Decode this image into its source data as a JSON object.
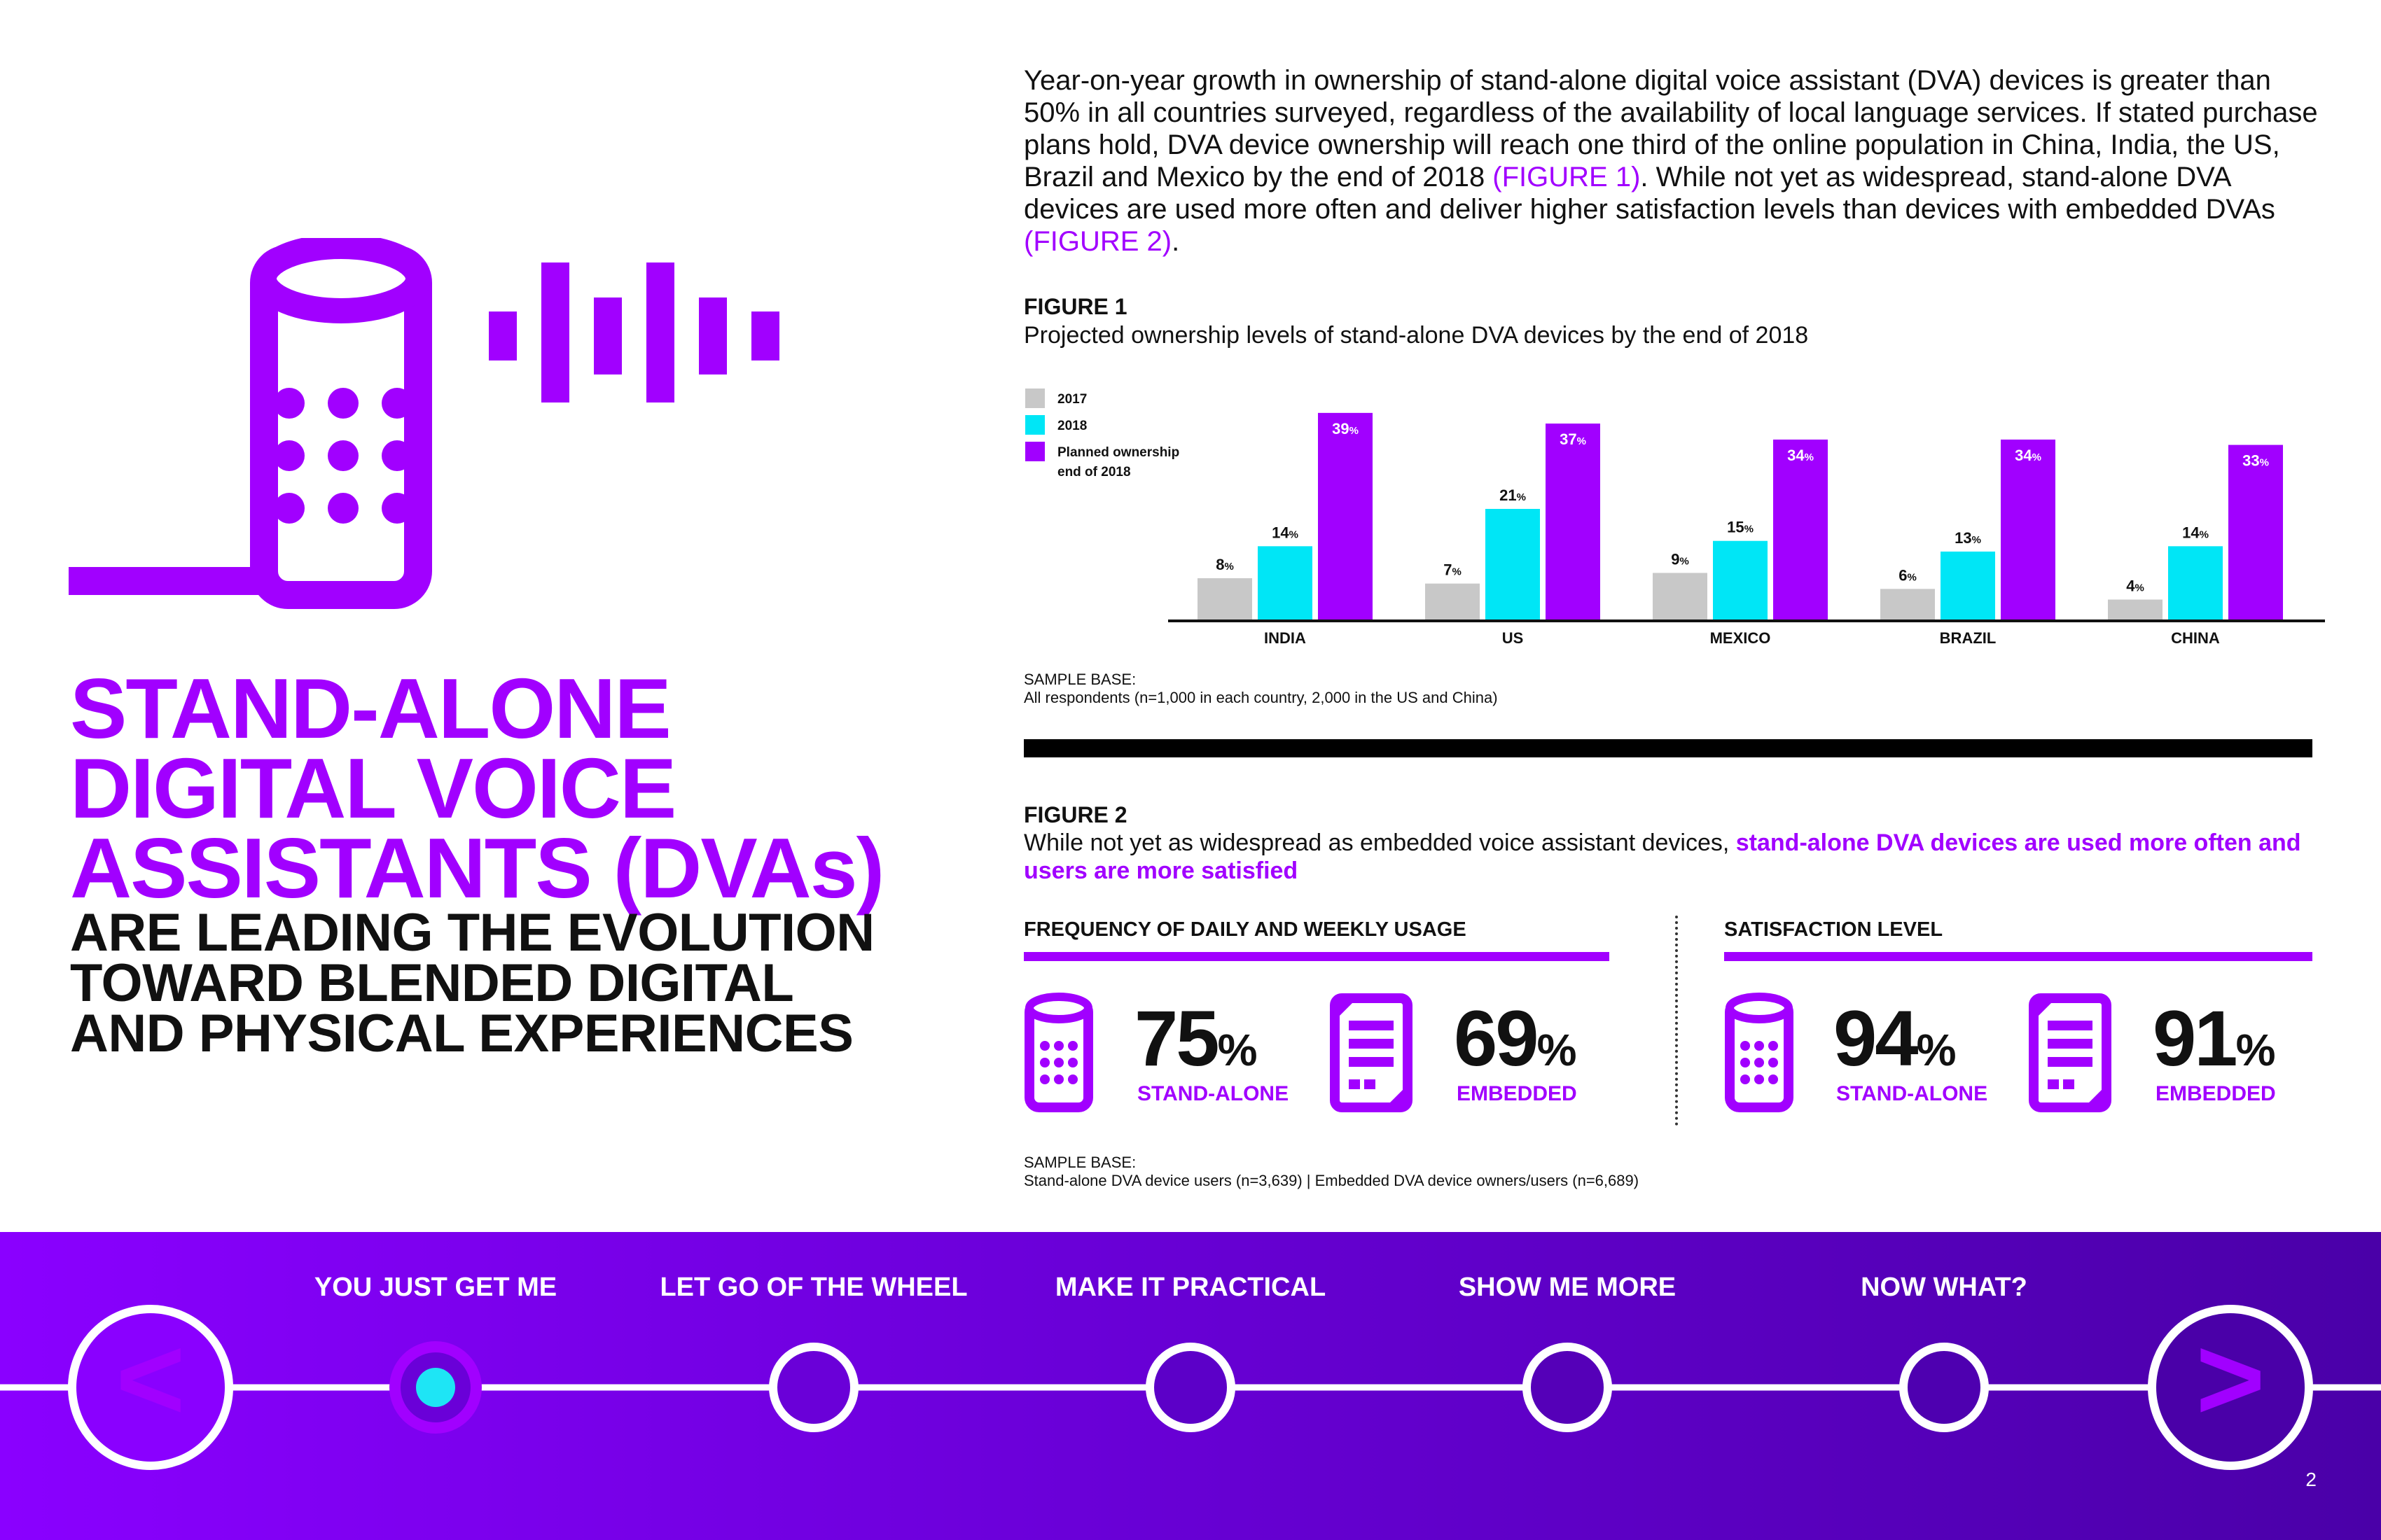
{
  "headline": {
    "purple_lines": [
      "STAND-ALONE",
      "DIGITAL VOICE",
      "ASSISTANTS (DVAs)"
    ],
    "black_lines": [
      "ARE LEADING THE EVOLUTION",
      "TOWARD BLENDED DIGITAL",
      "AND PHYSICAL EXPERIENCES"
    ]
  },
  "intro": {
    "part1": "Year-on-year growth in ownership of stand-alone digital voice assistant (DVA) devices is greater than 50% in all countries surveyed, regardless of the availability of local language services.  If stated purchase plans hold, DVA device ownership will reach one third of the online population in China, India, the US, Brazil and Mexico by the end of 2018 ",
    "link1": "(FIGURE 1)",
    "part2": ". While not yet as widespread, stand-alone DVA devices are used more often and deliver higher satisfaction levels than devices with embedded DVAs ",
    "link2": "(FIGURE 2)",
    "part3": "."
  },
  "figure1": {
    "label": "FIGURE 1",
    "subtitle": "Projected ownership levels of stand-alone DVA devices by the end of 2018",
    "sample_base_label": "SAMPLE BASE:",
    "sample_base_text": "All respondents (n=1,000 in each country, 2,000 in the US and China)"
  },
  "chart_data": {
    "type": "bar",
    "categories": [
      "INDIA",
      "US",
      "MEXICO",
      "BRAZIL",
      "CHINA"
    ],
    "series": [
      {
        "name": "2017",
        "color": "#c8c8c8",
        "values": [
          8,
          7,
          9,
          6,
          4
        ]
      },
      {
        "name": "2018",
        "color": "#00e6f6",
        "values": [
          14,
          21,
          15,
          13,
          14
        ]
      },
      {
        "name": "Planned ownership end of 2018",
        "color": "#a100ff",
        "values": [
          39,
          37,
          34,
          34,
          33
        ]
      }
    ],
    "legend": [
      "2017",
      "2018",
      "Planned ownership",
      "end of 2018"
    ],
    "value_suffix": "%",
    "ylim": [
      0,
      42
    ],
    "legend_position": "top-left",
    "grid": false
  },
  "figure2": {
    "label": "FIGURE 2",
    "subtitle_plain": "While not yet as widespread as embedded voice assistant devices, ",
    "subtitle_highlight": "stand-alone DVA devices are used more often and users are more satisfied",
    "frequency_heading": "FREQUENCY OF DAILY AND WEEKLY USAGE",
    "satisfaction_heading": "SATISFACTION LEVEL",
    "stats": [
      {
        "value": "75",
        "unit": "%",
        "label": "STAND-ALONE"
      },
      {
        "value": "69",
        "unit": "%",
        "label": "EMBEDDED"
      },
      {
        "value": "94",
        "unit": "%",
        "label": "STAND-ALONE"
      },
      {
        "value": "91",
        "unit": "%",
        "label": "EMBEDDED"
      }
    ],
    "sample_base_label": "SAMPLE BASE:",
    "sample_base_text": "Stand-alone DVA device users (n=3,639)  |  Embedded DVA device owners/users (n=6,689)"
  },
  "nav": {
    "prev_symbol": "<",
    "next_symbol": ">",
    "items": [
      "YOU JUST GET ME",
      "LET GO OF THE WHEEL",
      "MAKE IT PRACTICAL",
      "SHOW ME MORE",
      "NOW WHAT?"
    ],
    "active_index": 0
  },
  "page_number": "2",
  "colors": {
    "purple": "#a100ff",
    "cyan": "#00e6f6",
    "gray": "#c8c8c8",
    "nav_dark": "#4a00a8"
  }
}
